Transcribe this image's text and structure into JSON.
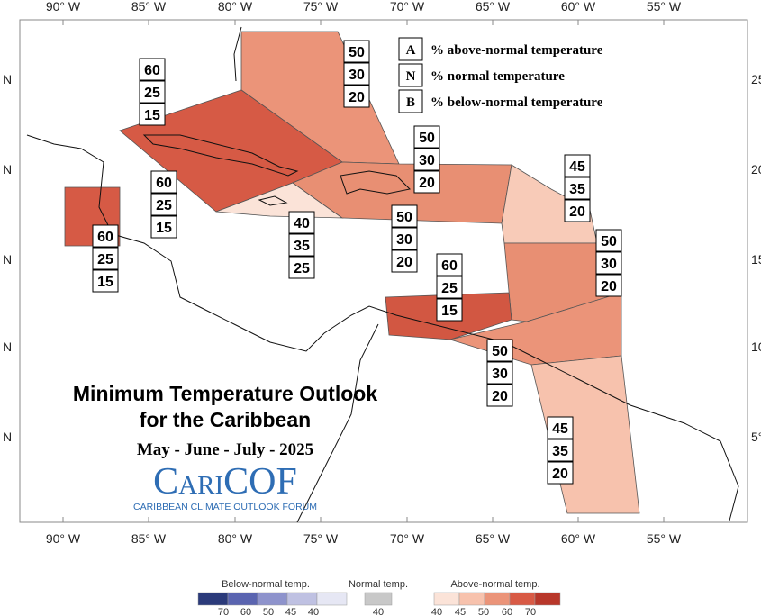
{
  "axes": {
    "top_labels": [
      "90° W",
      "85° W",
      "80° W",
      "75° W",
      "70° W",
      "65° W",
      "60° W",
      "55° W"
    ],
    "bottom_labels": [
      "90° W",
      "85° W",
      "80° W",
      "75° W",
      "70° W",
      "65° W",
      "60° W",
      "55° W"
    ],
    "left_labels": [
      "N",
      "N",
      "N",
      "N",
      "N"
    ],
    "right_labels": [
      "25°",
      "20°",
      "15°",
      "10°",
      "5°"
    ]
  },
  "title": {
    "line1": "Minimum Temperature Outlook",
    "line2": "for the Caribbean",
    "season": "May - June - July - 2025",
    "logo": "CariCOF",
    "logo_subtitle": "CARIBBEAN CLIMATE OUTLOOK FORUM"
  },
  "key": [
    {
      "letter": "A",
      "text": "% above-normal temperature"
    },
    {
      "letter": "N",
      "text": "% normal temperature"
    },
    {
      "letter": "B",
      "text": "% below-normal temperature"
    }
  ],
  "regions": [
    {
      "above": 60,
      "normal": 25,
      "below": 15
    },
    {
      "above": 50,
      "normal": 30,
      "below": 20
    },
    {
      "above": 60,
      "normal": 25,
      "below": 15
    },
    {
      "above": 60,
      "normal": 25,
      "below": 15
    },
    {
      "above": 40,
      "normal": 35,
      "below": 25
    },
    {
      "above": 50,
      "normal": 30,
      "below": 20
    },
    {
      "above": 50,
      "normal": 30,
      "below": 20
    },
    {
      "above": 45,
      "normal": 35,
      "below": 20
    },
    {
      "above": 50,
      "normal": 30,
      "below": 20
    },
    {
      "above": 60,
      "normal": 25,
      "below": 15
    },
    {
      "above": 50,
      "normal": 30,
      "below": 20
    },
    {
      "above": 45,
      "normal": 35,
      "below": 20
    }
  ],
  "colorbar": {
    "below_title": "Below-normal temp.",
    "below_ticks": [
      70,
      60,
      50,
      45,
      40
    ],
    "normal_title": "Normal temp.",
    "normal_ticks": [
      40
    ],
    "above_title": "Above-normal temp.",
    "above_ticks": [
      40,
      45,
      50,
      60,
      70
    ]
  }
}
